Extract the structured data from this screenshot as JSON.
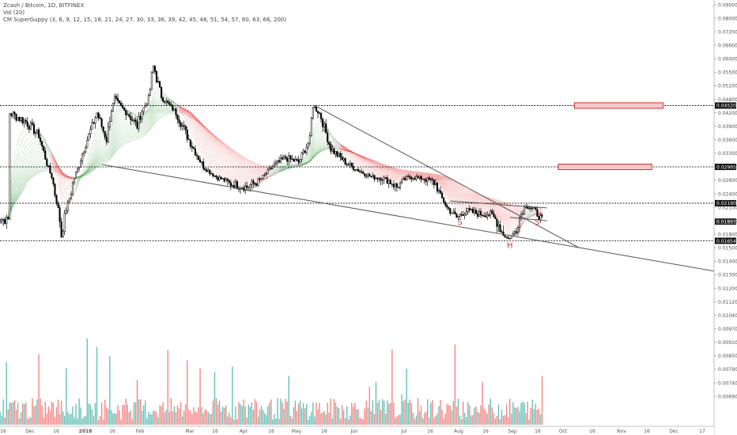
{
  "legend": {
    "symbol": "Zcash / Bitcoin, 1D, BITFINEX",
    "vol": "Vol (20)",
    "indicator": "CM SuperGuppy (3, 6, 9, 12, 15, 18, 21, 24, 27, 30, 33, 36, 39, 42, 45, 48, 51, 54, 57, 60, 63, 66, 200)"
  },
  "chart_data": {
    "type": "candlestick",
    "price_axis": {
      "ticks": [
        {
          "label": "0.090000",
          "value": 0.09
        },
        {
          "label": "0.080000",
          "value": 0.08
        },
        {
          "label": "0.072000",
          "value": 0.072
        },
        {
          "label": "0.066000",
          "value": 0.066
        },
        {
          "label": "0.060000",
          "value": 0.06
        },
        {
          "label": "0.055000",
          "value": 0.055
        },
        {
          "label": "0.052000",
          "value": 0.052
        },
        {
          "label": "0.048000",
          "value": 0.048
        },
        {
          "label": "0.042000",
          "value": 0.042
        },
        {
          "label": "0.039000",
          "value": 0.039
        },
        {
          "label": "0.036000",
          "value": 0.036
        },
        {
          "label": "0.033000",
          "value": 0.033
        },
        {
          "label": "0.030000",
          "value": 0.03
        },
        {
          "label": "0.026000",
          "value": 0.026
        },
        {
          "label": "0.024000",
          "value": 0.024
        },
        {
          "label": "0.021000",
          "value": 0.021
        },
        {
          "label": "0.019000",
          "value": 0.019
        },
        {
          "label": "0.018000",
          "value": 0.018
        },
        {
          "label": "0.015000",
          "value": 0.015
        },
        {
          "label": "0.014000",
          "value": 0.014
        },
        {
          "label": "0.013000",
          "value": 0.013
        },
        {
          "label": "0.012000",
          "value": 0.012
        },
        {
          "label": "0.011200",
          "value": 0.0112
        },
        {
          "label": "0.010400",
          "value": 0.0104
        },
        {
          "label": "0.009700",
          "value": 0.0097
        },
        {
          "label": "0.009100",
          "value": 0.0091
        },
        {
          "label": "0.008500",
          "value": 0.0085
        },
        {
          "label": "0.007900",
          "value": 0.0079
        },
        {
          "label": "0.007400",
          "value": 0.0074
        },
        {
          "label": "0.006900",
          "value": 0.0069
        }
      ],
      "price_labels": [
        {
          "label": "0.045204",
          "value": 0.045204,
          "style": "line"
        },
        {
          "label": "0.029958",
          "value": 0.029958,
          "style": "line"
        },
        {
          "label": "0.021900",
          "value": 0.0219,
          "style": "line"
        },
        {
          "label": "0.018937",
          "value": 0.018937,
          "style": "current"
        },
        {
          "label": "0.016546",
          "value": 0.016546,
          "style": "line"
        }
      ]
    },
    "time_axis": [
      "16",
      "Dec",
      "16",
      "2018",
      "16",
      "Feb",
      "Mar",
      "16",
      "Apr",
      "16",
      "May",
      "16",
      "Jun",
      "Jul",
      "16",
      "Aug",
      "16",
      "Sep",
      "16",
      "Oct",
      "16",
      "Nov",
      "16",
      "Dec",
      "17"
    ],
    "horizontal_levels": [
      0.045204,
      0.029958,
      0.0219,
      0.016546
    ],
    "target_boxes": [
      {
        "price": 0.045204,
        "start": "Oct 26",
        "end": "Dec 20"
      },
      {
        "price": 0.029958,
        "start": "Oct 16",
        "end": "Dec 13"
      }
    ],
    "pattern_labels": [
      {
        "text": "S",
        "date": "Aug 16",
        "price": 0.0187
      },
      {
        "text": "H",
        "date": "Sep 16",
        "price": 0.015
      },
      {
        "text": "S",
        "date": "Oct 03",
        "price": 0.0187
      }
    ],
    "price_points": [
      {
        "date": "Nov 10",
        "price": 0.042
      },
      {
        "date": "Nov 20",
        "price": 0.04
      },
      {
        "date": "Nov 28",
        "price": 0.037
      },
      {
        "date": "Dec 06",
        "price": 0.027
      },
      {
        "date": "Dec 12",
        "price": 0.0175
      },
      {
        "date": "Dec 17",
        "price": 0.023
      },
      {
        "date": "Dec 25",
        "price": 0.033
      },
      {
        "date": "Jan 03",
        "price": 0.042
      },
      {
        "date": "Jan 09",
        "price": 0.036
      },
      {
        "date": "Jan 14",
        "price": 0.048
      },
      {
        "date": "Jan 20",
        "price": 0.043
      },
      {
        "date": "Jan 28",
        "price": 0.039
      },
      {
        "date": "Feb 04",
        "price": 0.048
      },
      {
        "date": "Feb 07",
        "price": 0.057
      },
      {
        "date": "Feb 12",
        "price": 0.049
      },
      {
        "date": "Feb 20",
        "price": 0.043
      },
      {
        "date": "Mar 01",
        "price": 0.036
      },
      {
        "date": "Mar 10",
        "price": 0.03
      },
      {
        "date": "Mar 18",
        "price": 0.027
      },
      {
        "date": "Mar 26",
        "price": 0.0255
      },
      {
        "date": "Apr 06",
        "price": 0.025
      },
      {
        "date": "Apr 14",
        "price": 0.026
      },
      {
        "date": "Apr 22",
        "price": 0.03
      },
      {
        "date": "Apr 30",
        "price": 0.032
      },
      {
        "date": "May 08",
        "price": 0.031
      },
      {
        "date": "May 15",
        "price": 0.036
      },
      {
        "date": "May 17",
        "price": 0.045
      },
      {
        "date": "May 22",
        "price": 0.041
      },
      {
        "date": "May 28",
        "price": 0.034
      },
      {
        "date": "Jun 06",
        "price": 0.031
      },
      {
        "date": "Jun 14",
        "price": 0.029
      },
      {
        "date": "Jun 22",
        "price": 0.027
      },
      {
        "date": "Jun 30",
        "price": 0.0265
      },
      {
        "date": "Jul 08",
        "price": 0.025
      },
      {
        "date": "Jul 16",
        "price": 0.027
      },
      {
        "date": "Jul 24",
        "price": 0.0265
      },
      {
        "date": "Aug 01",
        "price": 0.0255
      },
      {
        "date": "Aug 08",
        "price": 0.021
      },
      {
        "date": "Aug 14",
        "price": 0.0195
      },
      {
        "date": "Aug 20",
        "price": 0.0205
      },
      {
        "date": "Aug 28",
        "price": 0.02
      },
      {
        "date": "Sep 04",
        "price": 0.02
      },
      {
        "date": "Sep 10",
        "price": 0.0185
      },
      {
        "date": "Sep 15",
        "price": 0.017
      },
      {
        "date": "Sep 20",
        "price": 0.0185
      },
      {
        "date": "Sep 26",
        "price": 0.0215
      },
      {
        "date": "Oct 01",
        "price": 0.0205
      },
      {
        "date": "Oct 06",
        "price": 0.0192
      }
    ],
    "trendlines": [
      {
        "from": {
          "date": "Jan 06",
          "price": 0.0305
        },
        "to": {
          "date": "Dec 31",
          "price": 0.0137
        }
      },
      {
        "from": {
          "date": "May 18",
          "price": 0.0452
        },
        "to": {
          "date": "Oct 29",
          "price": 0.015
        }
      },
      {
        "from": {
          "date": "Aug 10",
          "price": 0.0224
        },
        "to": {
          "date": "Oct 09",
          "price": 0.0209
        }
      },
      {
        "from": {
          "date": "Sep 16",
          "price": 0.0195
        },
        "to": {
          "date": "Oct 09",
          "price": 0.019
        }
      }
    ],
    "colors": {
      "up": "#26a69a",
      "down": "#ef5350",
      "candle": "#000000",
      "ribbon_bear": "#e53935",
      "ribbon_bull": "#43a047",
      "ribbon_neutral": "#9e9e9e"
    }
  }
}
